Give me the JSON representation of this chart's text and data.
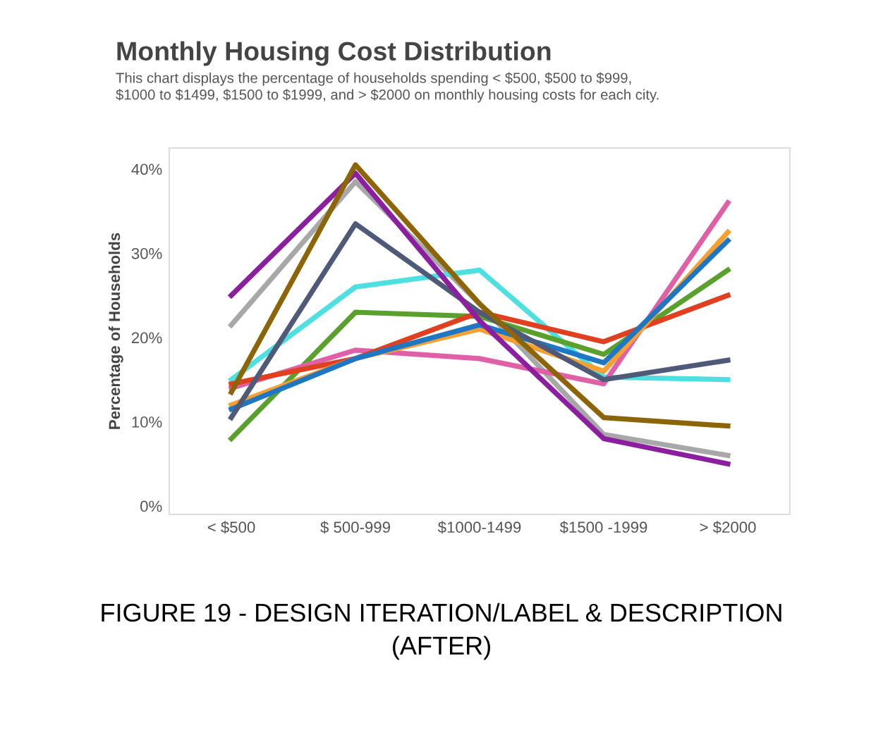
{
  "chart_data": {
    "type": "line",
    "title": "Monthly Housing Cost Distribution",
    "subtitle": "This chart displays the percentage of households spending < $500, $500 to $999,\n$1000 to $1499, $1500 to $1999, and > $2000 on monthly housing costs for each city.",
    "ylabel": "Percentage of Households",
    "annotations": [
      "FIGURE 19 - DESIGN ITERATION/LABEL & DESCRIPTION\n(AFTER)"
    ],
    "categories": [
      "< $500",
      "$ 500-999",
      "$1000-1499",
      "$1500 -1999",
      "> $2000"
    ],
    "ylim": [
      -1,
      42.5
    ],
    "yticks": [
      {
        "value": 0,
        "label": "0%"
      },
      {
        "value": 10,
        "label": "10%"
      },
      {
        "value": 20,
        "label": "20%"
      },
      {
        "value": 30,
        "label": "30%"
      },
      {
        "value": 40,
        "label": "40%"
      }
    ],
    "grid": false,
    "series": [
      {
        "color": "#a8a8a8",
        "values": [
          21.5,
          38.5,
          24,
          8.5,
          6
        ]
      },
      {
        "color": "#4ee0e0",
        "values": [
          15,
          26,
          28,
          15.3,
          15
        ]
      },
      {
        "color": "#5aa02c",
        "values": [
          8,
          23,
          22.5,
          18,
          28
        ]
      },
      {
        "color": "#e060a8",
        "values": [
          14,
          18.5,
          17.5,
          14.5,
          36
        ]
      },
      {
        "color": "#e04020",
        "values": [
          14.5,
          17.5,
          23,
          19.5,
          25
        ]
      },
      {
        "color": "#f5a030",
        "values": [
          12,
          17.5,
          21,
          16,
          32.5
        ]
      },
      {
        "color": "#1f77c4",
        "values": [
          11.5,
          17.5,
          21.5,
          17,
          31.5
        ]
      },
      {
        "color": "#4e5a78",
        "values": [
          10.5,
          33.5,
          23,
          15,
          17.3
        ]
      },
      {
        "color": "#8b1fa0",
        "values": [
          25,
          39.5,
          22,
          8,
          5
        ]
      },
      {
        "color": "#8b6508",
        "values": [
          13.5,
          40.5,
          24,
          10.5,
          9.5
        ]
      }
    ]
  }
}
